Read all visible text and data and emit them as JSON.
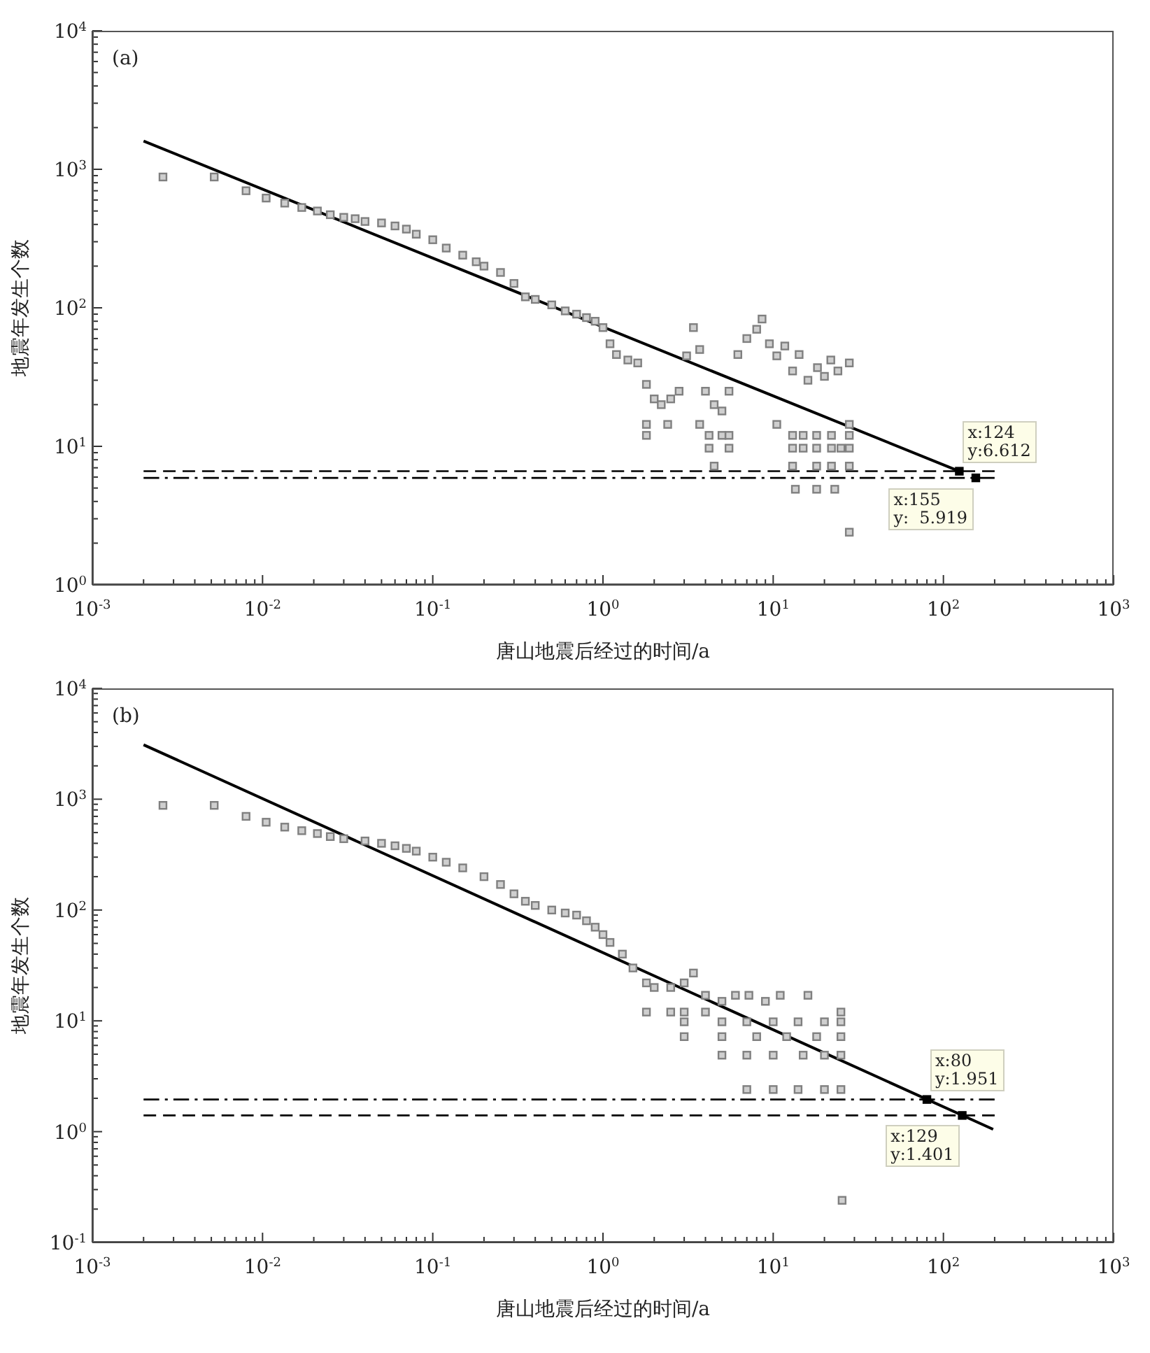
{
  "chart_data": [
    {
      "type": "scatter",
      "xlabel": "唐山地震后经过的时间/a",
      "ylabel": "地震年发生个数",
      "log": "xy",
      "xlim": [
        0.001,
        1000
      ],
      "ylim": [
        1,
        10000
      ],
      "xticks": [
        {
          "value": 0.001,
          "label": "10$^{-3}$"
        },
        {
          "value": 0.002,
          "label": null
        },
        {
          "value": 0.003,
          "label": null
        },
        {
          "value": 0.004,
          "label": null
        },
        {
          "value": 0.005,
          "label": null
        },
        {
          "value": 0.006,
          "label": null
        },
        {
          "value": 0.007,
          "label": null
        },
        {
          "value": 0.008,
          "label": null
        },
        {
          "value": 0.009,
          "label": null
        },
        {
          "value": 0.01,
          "label": "10$^{-2}$"
        },
        {
          "value": 0.02,
          "label": null
        },
        {
          "value": 0.03,
          "label": null
        },
        {
          "value": 0.04,
          "label": null
        },
        {
          "value": 0.05,
          "label": null
        },
        {
          "value": 0.06,
          "label": null
        },
        {
          "value": 0.07,
          "label": null
        },
        {
          "value": 0.08,
          "label": null
        },
        {
          "value": 0.09,
          "label": null
        },
        {
          "value": 0.1,
          "label": "10$^{-1}$"
        },
        {
          "value": 0.2,
          "label": null
        },
        {
          "value": 0.3,
          "label": null
        },
        {
          "value": 0.4,
          "label": null
        },
        {
          "value": 0.5,
          "label": null
        },
        {
          "value": 0.6,
          "label": null
        },
        {
          "value": 0.7,
          "label": null
        },
        {
          "value": 0.8,
          "label": null
        },
        {
          "value": 0.9,
          "label": null
        },
        {
          "value": 1,
          "label": "10$^{0}$"
        },
        {
          "value": 2,
          "label": null
        },
        {
          "value": 3,
          "label": null
        },
        {
          "value": 4,
          "label": null
        },
        {
          "value": 5,
          "label": null
        },
        {
          "value": 6,
          "label": null
        },
        {
          "value": 7,
          "label": null
        },
        {
          "value": 8,
          "label": null
        },
        {
          "value": 9,
          "label": null
        },
        {
          "value": 10,
          "label": "10$^{1}$"
        },
        {
          "value": 20,
          "label": null
        },
        {
          "value": 30,
          "label": null
        },
        {
          "value": 40,
          "label": null
        },
        {
          "value": 50,
          "label": null
        },
        {
          "value": 60,
          "label": null
        },
        {
          "value": 70,
          "label": null
        },
        {
          "value": 80,
          "label": null
        },
        {
          "value": 90,
          "label": null
        },
        {
          "value": 100,
          "label": "10$^{2}$"
        },
        {
          "value": 200,
          "label": null
        },
        {
          "value": 300,
          "label": null
        },
        {
          "value": 400,
          "label": null
        },
        {
          "value": 500,
          "label": null
        },
        {
          "value": 600,
          "label": null
        },
        {
          "value": 700,
          "label": null
        },
        {
          "value": 800,
          "label": null
        },
        {
          "value": 900,
          "label": null
        },
        {
          "value": 1000,
          "label": "10$^{3}$"
        }
      ],
      "yticks": [
        {
          "value": 1,
          "label": "10$^{0}$"
        },
        {
          "value": 2,
          "label": null
        },
        {
          "value": 3,
          "label": null
        },
        {
          "value": 4,
          "label": null
        },
        {
          "value": 5,
          "label": null
        },
        {
          "value": 6,
          "label": null
        },
        {
          "value": 7,
          "label": null
        },
        {
          "value": 8,
          "label": null
        },
        {
          "value": 9,
          "label": null
        },
        {
          "value": 10,
          "label": "10$^{1}$"
        },
        {
          "value": 20,
          "label": null
        },
        {
          "value": 30,
          "label": null
        },
        {
          "value": 40,
          "label": null
        },
        {
          "value": 50,
          "label": null
        },
        {
          "value": 60,
          "label": null
        },
        {
          "value": 70,
          "label": null
        },
        {
          "value": 80,
          "label": null
        },
        {
          "value": 90,
          "label": null
        },
        {
          "value": 100,
          "label": "10$^{2}$"
        },
        {
          "value": 200,
          "label": null
        },
        {
          "value": 300,
          "label": null
        },
        {
          "value": 400,
          "label": null
        },
        {
          "value": 500,
          "label": null
        },
        {
          "value": 600,
          "label": null
        },
        {
          "value": 700,
          "label": null
        },
        {
          "value": 800,
          "label": null
        },
        {
          "value": 900,
          "label": null
        },
        {
          "value": 1000,
          "label": "10$^{3}$"
        },
        {
          "value": 2000,
          "label": null
        },
        {
          "value": 3000,
          "label": null
        },
        {
          "value": 4000,
          "label": null
        },
        {
          "value": 5000,
          "label": null
        },
        {
          "value": 6000,
          "label": null
        },
        {
          "value": 7000,
          "label": null
        },
        {
          "value": 8000,
          "label": null
        },
        {
          "value": 9000,
          "label": null
        },
        {
          "value": 10000,
          "label": "10$^{4}$"
        }
      ],
      "annotations": [
        "(a)",
        {
          "text": "x:124\ny:6.612",
          "x": 124,
          "y": 6.612
        },
        {
          "text": "x:155\ny:  5.919",
          "x": 155,
          "y": 5.919
        }
      ],
      "series": [
        {
          "type": "scatter",
          "marker": "square",
          "color": "#808080",
          "x": [
            0.0026,
            0.0052,
            0.008,
            0.0105,
            0.0135,
            0.017,
            0.021,
            0.025,
            0.03,
            0.035,
            0.04,
            0.05,
            0.06,
            0.07,
            0.08,
            0.1,
            0.12,
            0.15,
            0.18,
            0.2,
            0.25,
            0.3,
            0.35,
            0.4,
            0.5,
            0.6,
            0.7,
            0.8,
            0.9,
            1.0,
            1.1,
            1.2,
            1.4,
            1.6,
            1.8,
            2.0,
            2.2,
            2.5,
            2.8,
            3.1,
            3.4,
            3.7,
            4.0,
            4.5,
            5.0,
            5.5,
            6.2,
            7,
            8,
            8.6,
            9.5,
            10.5,
            11.7,
            13,
            14.2,
            16,
            18.2,
            20,
            21.8,
            24,
            28,
            1.8,
            1.8,
            2.4,
            3.7,
            4.2,
            4.2,
            4.5,
            5,
            5.5,
            5.5,
            10.5,
            13,
            13,
            13,
            15,
            15,
            18,
            18,
            18,
            22,
            22,
            22,
            25,
            28,
            28,
            28,
            28,
            13.5,
            18,
            23,
            28
          ],
          "values": [
            880,
            880,
            700,
            620,
            570,
            530,
            500,
            470,
            450,
            440,
            420,
            410,
            390,
            370,
            340,
            310,
            270,
            240,
            215,
            200,
            180,
            150,
            120,
            115,
            105,
            95,
            90,
            85,
            80,
            72,
            55,
            46,
            42,
            40,
            28,
            22,
            20,
            22,
            25,
            45,
            72,
            50,
            25,
            20,
            18,
            25,
            46,
            60,
            70,
            83,
            55,
            45,
            53,
            35,
            46,
            30,
            37,
            32,
            42,
            35,
            40,
            14.4,
            12,
            14.4,
            14.4,
            12,
            9.7,
            7.2,
            12,
            12,
            9.7,
            14.4,
            12,
            9.7,
            7.2,
            12,
            9.7,
            12,
            9.7,
            7.2,
            12,
            9.7,
            7.2,
            9.7,
            14.4,
            12,
            9.7,
            7.2,
            4.9,
            4.9,
            4.9,
            2.4
          ]
        },
        {
          "type": "line",
          "color": "#000000",
          "line_style": "solid",
          "x": [
            0.002,
            124
          ],
          "values": [
            1600,
            6.612
          ]
        },
        {
          "type": "line",
          "color": "#000000",
          "line_style": "dashed",
          "x": [
            0.002,
            200
          ],
          "values": [
            6.612,
            6.612
          ]
        },
        {
          "type": "line",
          "color": "#000000",
          "line_style": "dashdot",
          "x": [
            0.002,
            200
          ],
          "values": [
            5.919,
            5.919
          ]
        },
        {
          "type": "scatter",
          "marker": "square",
          "color": "#000000",
          "x": [
            124,
            155
          ],
          "values": [
            6.612,
            5.919
          ]
        }
      ]
    },
    {
      "type": "scatter",
      "xlabel": "唐山地震后经过的时间/a",
      "ylabel": "地震年发生个数",
      "log": "xy",
      "xlim": [
        0.001,
        1000
      ],
      "ylim": [
        0.1,
        10000
      ],
      "xticks": [
        {
          "value": 0.001,
          "label": "10$^{-3}$"
        },
        {
          "value": 0.002,
          "label": null
        },
        {
          "value": 0.003,
          "label": null
        },
        {
          "value": 0.004,
          "label": null
        },
        {
          "value": 0.005,
          "label": null
        },
        {
          "value": 0.006,
          "label": null
        },
        {
          "value": 0.007,
          "label": null
        },
        {
          "value": 0.008,
          "label": null
        },
        {
          "value": 0.009,
          "label": null
        },
        {
          "value": 0.01,
          "label": "10$^{-2}$"
        },
        {
          "value": 0.02,
          "label": null
        },
        {
          "value": 0.03,
          "label": null
        },
        {
          "value": 0.04,
          "label": null
        },
        {
          "value": 0.05,
          "label": null
        },
        {
          "value": 0.06,
          "label": null
        },
        {
          "value": 0.07,
          "label": null
        },
        {
          "value": 0.08,
          "label": null
        },
        {
          "value": 0.09,
          "label": null
        },
        {
          "value": 0.1,
          "label": "10$^{-1}$"
        },
        {
          "value": 0.2,
          "label": null
        },
        {
          "value": 0.3,
          "label": null
        },
        {
          "value": 0.4,
          "label": null
        },
        {
          "value": 0.5,
          "label": null
        },
        {
          "value": 0.6,
          "label": null
        },
        {
          "value": 0.7,
          "label": null
        },
        {
          "value": 0.8,
          "label": null
        },
        {
          "value": 0.9,
          "label": null
        },
        {
          "value": 1,
          "label": "10$^{0}$"
        },
        {
          "value": 2,
          "label": null
        },
        {
          "value": 3,
          "label": null
        },
        {
          "value": 4,
          "label": null
        },
        {
          "value": 5,
          "label": null
        },
        {
          "value": 6,
          "label": null
        },
        {
          "value": 7,
          "label": null
        },
        {
          "value": 8,
          "label": null
        },
        {
          "value": 9,
          "label": null
        },
        {
          "value": 10,
          "label": "10$^{1}$"
        },
        {
          "value": 20,
          "label": null
        },
        {
          "value": 30,
          "label": null
        },
        {
          "value": 40,
          "label": null
        },
        {
          "value": 50,
          "label": null
        },
        {
          "value": 60,
          "label": null
        },
        {
          "value": 70,
          "label": null
        },
        {
          "value": 80,
          "label": null
        },
        {
          "value": 90,
          "label": null
        },
        {
          "value": 100,
          "label": "10$^{2}$"
        },
        {
          "value": 200,
          "label": null
        },
        {
          "value": 300,
          "label": null
        },
        {
          "value": 400,
          "label": null
        },
        {
          "value": 500,
          "label": null
        },
        {
          "value": 600,
          "label": null
        },
        {
          "value": 700,
          "label": null
        },
        {
          "value": 800,
          "label": null
        },
        {
          "value": 900,
          "label": null
        },
        {
          "value": 1000,
          "label": "10$^{3}$"
        }
      ],
      "yticks": [
        {
          "value": 0.1,
          "label": "10$^{-1}$"
        },
        {
          "value": 0.2,
          "label": null
        },
        {
          "value": 0.3,
          "label": null
        },
        {
          "value": 0.4,
          "label": null
        },
        {
          "value": 0.5,
          "label": null
        },
        {
          "value": 0.6,
          "label": null
        },
        {
          "value": 0.7,
          "label": null
        },
        {
          "value": 0.8,
          "label": null
        },
        {
          "value": 0.9,
          "label": null
        },
        {
          "value": 1,
          "label": "10$^{0}$"
        },
        {
          "value": 2,
          "label": null
        },
        {
          "value": 3,
          "label": null
        },
        {
          "value": 4,
          "label": null
        },
        {
          "value": 5,
          "label": null
        },
        {
          "value": 6,
          "label": null
        },
        {
          "value": 7,
          "label": null
        },
        {
          "value": 8,
          "label": null
        },
        {
          "value": 9,
          "label": null
        },
        {
          "value": 10,
          "label": "10$^{1}$"
        },
        {
          "value": 20,
          "label": null
        },
        {
          "value": 30,
          "label": null
        },
        {
          "value": 40,
          "label": null
        },
        {
          "value": 50,
          "label": null
        },
        {
          "value": 60,
          "label": null
        },
        {
          "value": 70,
          "label": null
        },
        {
          "value": 80,
          "label": null
        },
        {
          "value": 90,
          "label": null
        },
        {
          "value": 100,
          "label": "10$^{2}$"
        },
        {
          "value": 200,
          "label": null
        },
        {
          "value": 300,
          "label": null
        },
        {
          "value": 400,
          "label": null
        },
        {
          "value": 500,
          "label": null
        },
        {
          "value": 600,
          "label": null
        },
        {
          "value": 700,
          "label": null
        },
        {
          "value": 800,
          "label": null
        },
        {
          "value": 900,
          "label": null
        },
        {
          "value": 1000,
          "label": "10$^{3}$"
        },
        {
          "value": 2000,
          "label": null
        },
        {
          "value": 3000,
          "label": null
        },
        {
          "value": 4000,
          "label": null
        },
        {
          "value": 5000,
          "label": null
        },
        {
          "value": 6000,
          "label": null
        },
        {
          "value": 7000,
          "label": null
        },
        {
          "value": 8000,
          "label": null
        },
        {
          "value": 9000,
          "label": null
        },
        {
          "value": 10000,
          "label": "10$^{4}$"
        }
      ],
      "annotations": [
        "(b)",
        {
          "text": "x:80\ny:1.951",
          "x": 80,
          "y": 1.951
        },
        {
          "text": "x:129\ny:1.401",
          "x": 129,
          "y": 1.401
        }
      ],
      "series": [
        {
          "type": "scatter",
          "marker": "square",
          "color": "#808080",
          "x": [
            0.0026,
            0.0052,
            0.008,
            0.0105,
            0.0135,
            0.017,
            0.021,
            0.025,
            0.03,
            0.04,
            0.05,
            0.06,
            0.07,
            0.08,
            0.1,
            0.12,
            0.15,
            0.2,
            0.25,
            0.3,
            0.35,
            0.4,
            0.5,
            0.6,
            0.7,
            0.8,
            0.9,
            1.0,
            1.1,
            1.3,
            1.5,
            1.8,
            2.0,
            2.5,
            3.0,
            3.4,
            4,
            5,
            6,
            7.2,
            9,
            11,
            16,
            1.8,
            2.5,
            3,
            4,
            25,
            3,
            5,
            7,
            10,
            14,
            20,
            25,
            3,
            5,
            8,
            12,
            18,
            25,
            5,
            7,
            10,
            15,
            20,
            25,
            7,
            10,
            14,
            20,
            25,
            25.4
          ],
          "values": [
            880,
            880,
            700,
            620,
            560,
            520,
            490,
            460,
            440,
            420,
            400,
            380,
            360,
            340,
            300,
            270,
            240,
            200,
            170,
            140,
            120,
            110,
            100,
            94,
            90,
            80,
            70,
            60,
            51,
            40,
            30,
            22,
            20,
            20,
            22,
            27,
            17,
            15,
            17,
            17,
            15,
            17,
            17,
            12,
            12,
            12,
            12,
            12,
            9.8,
            9.8,
            9.8,
            9.8,
            9.8,
            9.8,
            9.8,
            7.2,
            7.2,
            7.2,
            7.2,
            7.2,
            7.2,
            4.9,
            4.9,
            4.9,
            4.9,
            4.9,
            4.9,
            2.4,
            2.4,
            2.4,
            2.4,
            2.4,
            0.24
          ]
        },
        {
          "type": "line",
          "color": "#000000",
          "line_style": "solid",
          "x": [
            0.002,
            196
          ],
          "values": [
            3100,
            1.05
          ]
        },
        {
          "type": "line",
          "color": "#000000",
          "line_style": "dashdot",
          "x": [
            0.002,
            200
          ],
          "values": [
            1.951,
            1.951
          ]
        },
        {
          "type": "line",
          "color": "#000000",
          "line_style": "dashed",
          "x": [
            0.002,
            200
          ],
          "values": [
            1.401,
            1.401
          ]
        },
        {
          "type": "scatter",
          "marker": "square",
          "color": "#000000",
          "x": [
            80,
            129
          ],
          "values": [
            1.951,
            1.401
          ]
        }
      ]
    }
  ]
}
